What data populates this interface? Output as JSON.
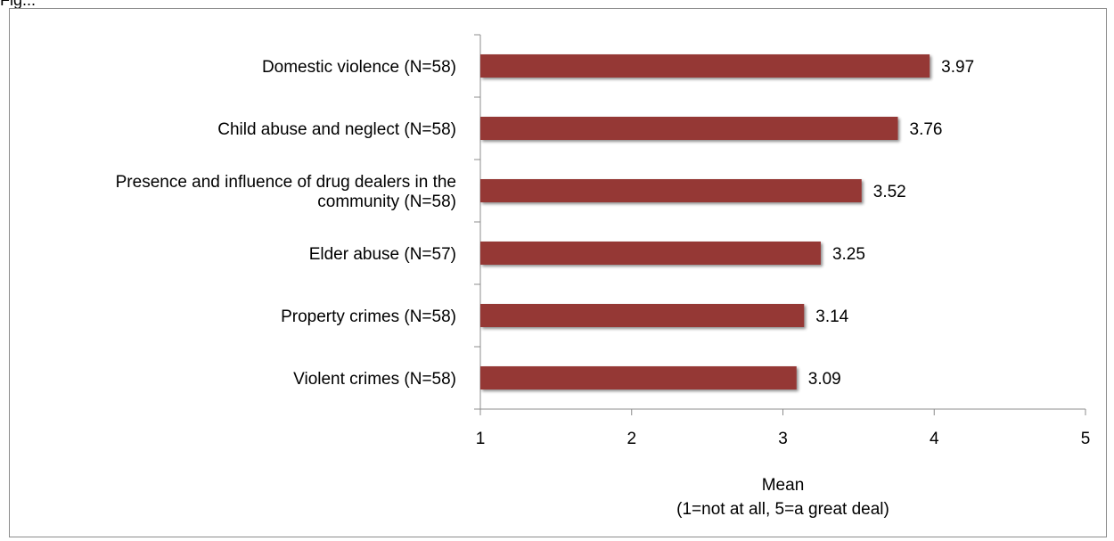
{
  "caption_fragment": "Fig...",
  "chart_data": {
    "type": "bar",
    "orientation": "horizontal",
    "categories": [
      [
        "Domestic violence (N=58)"
      ],
      [
        "Child abuse and neglect (N=58)"
      ],
      [
        "Presence and influence of drug dealers in the",
        "community (N=58)"
      ],
      [
        "Elder abuse (N=57)"
      ],
      [
        "Property crimes (N=58)"
      ],
      [
        "Violent crimes (N=58)"
      ]
    ],
    "values": [
      3.97,
      3.76,
      3.52,
      3.25,
      3.14,
      3.09
    ],
    "data_labels": [
      "3.97",
      "3.76",
      "3.52",
      "3.25",
      "3.14",
      "3.09"
    ],
    "xlim": [
      1,
      5
    ],
    "xticks": [
      "1",
      "2",
      "3",
      "4",
      "5"
    ],
    "xlabel": [
      "Mean",
      "(1=not at all, 5=a great deal)"
    ],
    "ylabel": "",
    "title": "",
    "bar_color": "#953735",
    "grid": false,
    "legend": "none"
  }
}
